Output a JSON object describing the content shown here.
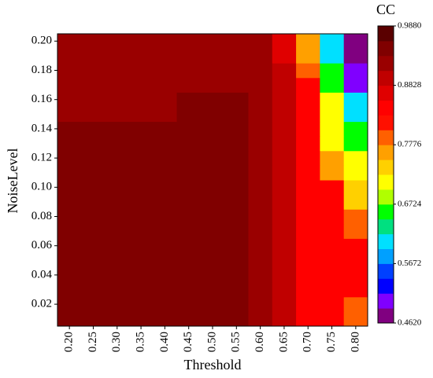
{
  "chart_data": {
    "type": "heatmap",
    "categories": [
      "0.20",
      "0.25",
      "0.30",
      "0.35",
      "0.40",
      "0.45",
      "0.50",
      "0.55",
      "0.60",
      "0.65",
      "0.70",
      "0.75",
      "0.80"
    ],
    "y": [
      0.01,
      0.02,
      0.03,
      0.04,
      0.05,
      0.06,
      0.07,
      0.08,
      0.09,
      0.1,
      0.11,
      0.12,
      0.13,
      0.14,
      0.15,
      0.16,
      0.17,
      0.18,
      0.19,
      0.2
    ],
    "z": [
      [
        0.949,
        0.949,
        0.949,
        0.949,
        0.949,
        0.949,
        0.949,
        0.949,
        0.922,
        0.896,
        0.843,
        0.843,
        0.791
      ],
      [
        0.949,
        0.949,
        0.949,
        0.949,
        0.949,
        0.949,
        0.949,
        0.949,
        0.922,
        0.896,
        0.843,
        0.843,
        0.791
      ],
      [
        0.949,
        0.949,
        0.949,
        0.949,
        0.949,
        0.949,
        0.949,
        0.949,
        0.922,
        0.896,
        0.843,
        0.843,
        0.843
      ],
      [
        0.949,
        0.949,
        0.949,
        0.949,
        0.949,
        0.949,
        0.949,
        0.949,
        0.922,
        0.896,
        0.843,
        0.843,
        0.843
      ],
      [
        0.949,
        0.949,
        0.949,
        0.949,
        0.949,
        0.949,
        0.949,
        0.949,
        0.922,
        0.896,
        0.843,
        0.843,
        0.843
      ],
      [
        0.949,
        0.949,
        0.949,
        0.949,
        0.949,
        0.949,
        0.949,
        0.949,
        0.922,
        0.896,
        0.843,
        0.843,
        0.843
      ],
      [
        0.949,
        0.949,
        0.949,
        0.949,
        0.949,
        0.949,
        0.949,
        0.949,
        0.922,
        0.896,
        0.843,
        0.843,
        0.791
      ],
      [
        0.949,
        0.949,
        0.949,
        0.949,
        0.949,
        0.949,
        0.949,
        0.949,
        0.922,
        0.896,
        0.843,
        0.843,
        0.791
      ],
      [
        0.949,
        0.949,
        0.949,
        0.949,
        0.949,
        0.949,
        0.949,
        0.949,
        0.922,
        0.896,
        0.843,
        0.843,
        0.745
      ],
      [
        0.949,
        0.949,
        0.949,
        0.949,
        0.949,
        0.949,
        0.949,
        0.949,
        0.922,
        0.896,
        0.843,
        0.843,
        0.745
      ],
      [
        0.949,
        0.949,
        0.949,
        0.949,
        0.949,
        0.949,
        0.949,
        0.949,
        0.922,
        0.896,
        0.843,
        0.764,
        0.72
      ],
      [
        0.949,
        0.949,
        0.949,
        0.949,
        0.949,
        0.949,
        0.949,
        0.949,
        0.922,
        0.896,
        0.843,
        0.764,
        0.72
      ],
      [
        0.949,
        0.949,
        0.949,
        0.949,
        0.949,
        0.949,
        0.949,
        0.949,
        0.922,
        0.896,
        0.843,
        0.72,
        0.659
      ],
      [
        0.949,
        0.949,
        0.949,
        0.949,
        0.949,
        0.949,
        0.949,
        0.949,
        0.922,
        0.896,
        0.843,
        0.72,
        0.659
      ],
      [
        0.935,
        0.935,
        0.935,
        0.935,
        0.935,
        0.949,
        0.949,
        0.949,
        0.922,
        0.896,
        0.843,
        0.7,
        0.606
      ],
      [
        0.935,
        0.935,
        0.935,
        0.935,
        0.935,
        0.949,
        0.949,
        0.949,
        0.922,
        0.896,
        0.843,
        0.7,
        0.606
      ],
      [
        0.935,
        0.935,
        0.935,
        0.935,
        0.935,
        0.935,
        0.935,
        0.935,
        0.922,
        0.896,
        0.843,
        0.659,
        0.501
      ],
      [
        0.935,
        0.935,
        0.935,
        0.935,
        0.935,
        0.935,
        0.935,
        0.935,
        0.922,
        0.896,
        0.791,
        0.659,
        0.501
      ],
      [
        0.935,
        0.935,
        0.935,
        0.935,
        0.935,
        0.935,
        0.935,
        0.935,
        0.922,
        0.87,
        0.764,
        0.606,
        0.475
      ],
      [
        0.935,
        0.935,
        0.935,
        0.935,
        0.935,
        0.935,
        0.935,
        0.935,
        0.922,
        0.87,
        0.764,
        0.606,
        0.475
      ]
    ],
    "ylim": [
      0.005,
      0.205
    ],
    "yticks": [
      {
        "value": 0.02,
        "label": "0.02"
      },
      {
        "value": 0.04,
        "label": "0.04"
      },
      {
        "value": 0.06,
        "label": "0.06"
      },
      {
        "value": 0.08,
        "label": "0.08"
      },
      {
        "value": 0.1,
        "label": "0.10"
      },
      {
        "value": 0.12,
        "label": "0.12"
      },
      {
        "value": 0.14,
        "label": "0.14"
      },
      {
        "value": 0.16,
        "label": "0.16"
      },
      {
        "value": 0.18,
        "label": "0.18"
      },
      {
        "value": 0.2,
        "label": "0.20"
      }
    ],
    "x_label": "Threshold",
    "y_label": "NoiseLevel",
    "colorbar_title": "CC",
    "colorbar_lim": [
      0.462,
      0.988
    ],
    "colorbar_ticks": [
      {
        "value": 0.988,
        "label": "0.9880"
      },
      {
        "value": 0.8828,
        "label": "0.8828"
      },
      {
        "value": 0.7776,
        "label": "0.7776"
      },
      {
        "value": 0.6724,
        "label": "0.6724"
      },
      {
        "value": 0.5672,
        "label": "0.5672"
      },
      {
        "value": 0.462,
        "label": "0.4620"
      }
    ],
    "colorscale": [
      "#800080",
      "#8000ff",
      "#0000ff",
      "#0040ff",
      "#00a0ff",
      "#00e0ff",
      "#00e080",
      "#00ff00",
      "#b0ff00",
      "#ffff00",
      "#ffd000",
      "#ffa000",
      "#ff6000",
      "#ff1000",
      "#ff0000",
      "#e00000",
      "#c00000",
      "#9a0000",
      "#800000",
      "#5a0000"
    ]
  }
}
